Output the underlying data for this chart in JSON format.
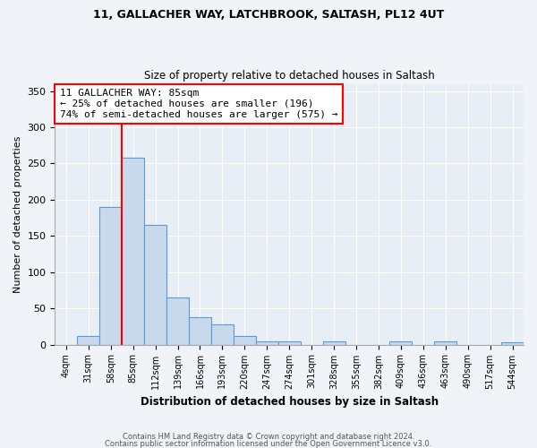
{
  "title1": "11, GALLACHER WAY, LATCHBROOK, SALTASH, PL12 4UT",
  "title2": "Size of property relative to detached houses in Saltash",
  "xlabel": "Distribution of detached houses by size in Saltash",
  "ylabel": "Number of detached properties",
  "footer1": "Contains HM Land Registry data © Crown copyright and database right 2024.",
  "footer2": "Contains public sector information licensed under the Open Government Licence v3.0.",
  "bin_edges": [
    4,
    31,
    58,
    85,
    112,
    139,
    166,
    193,
    220,
    247,
    274,
    301,
    328,
    355,
    382,
    409,
    436,
    463,
    490,
    517,
    544
  ],
  "bar_heights": [
    0,
    12,
    190,
    258,
    165,
    65,
    38,
    28,
    12,
    5,
    4,
    0,
    4,
    0,
    0,
    4,
    0,
    4,
    0,
    0,
    3
  ],
  "bar_color": "#c9d9ec",
  "bar_edge_color": "#5b9bd5",
  "red_line_x": 85,
  "annotation_text": "11 GALLACHER WAY: 85sqm\n← 25% of detached houses are smaller (196)\n74% of semi-detached houses are larger (575) →",
  "annotation_box_color": "white",
  "annotation_box_edge_color": "red",
  "ylim": [
    0,
    360
  ],
  "yticks": [
    0,
    50,
    100,
    150,
    200,
    250,
    300,
    350
  ],
  "background_color": "#f0f4f8",
  "plot_background_color": "#e8eef5"
}
